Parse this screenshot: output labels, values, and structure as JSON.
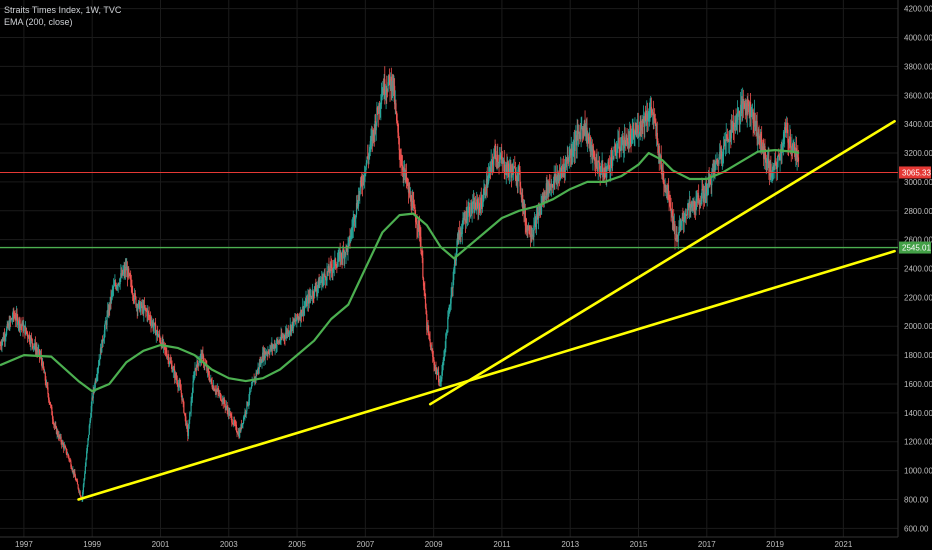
{
  "legend": {
    "title": "Straits Times Index, 1W, TVC",
    "indicator": "EMA (200, close)"
  },
  "colors": {
    "background": "#000000",
    "grid": "#1b1b1b",
    "axis_text": "#bfbfbf",
    "candle_up": "#26a69a",
    "candle_down": "#ef5350",
    "ema": "#4caf50",
    "trendline": "#ffff00",
    "support": "#4caf50",
    "price": "#e53935"
  },
  "chart_data": {
    "type": "candlestick",
    "x_ticks": [
      "1997",
      "1999",
      "2001",
      "2003",
      "2005",
      "2007",
      "2009",
      "2011",
      "2013",
      "2015",
      "2017",
      "2019",
      "2021"
    ],
    "x_range": [
      1996.3,
      2022.6
    ],
    "y_ticks": [
      600,
      800,
      1000,
      1200,
      1400,
      1600,
      1800,
      2000,
      2200,
      2400,
      2600,
      2800,
      3000,
      3200,
      3400,
      3600,
      3800,
      4000,
      4200
    ],
    "y_range": [
      540,
      4260
    ],
    "price_path": [
      [
        1996.3,
        1870
      ],
      [
        1996.7,
        2080
      ],
      [
        1997.1,
        1950
      ],
      [
        1997.5,
        1780
      ],
      [
        1997.9,
        1300
      ],
      [
        1998.3,
        1100
      ],
      [
        1998.7,
        800
      ],
      [
        1999.0,
        1500
      ],
      [
        1999.3,
        1900
      ],
      [
        1999.6,
        2250
      ],
      [
        2000.0,
        2400
      ],
      [
        2000.3,
        2150
      ],
      [
        2000.6,
        2100
      ],
      [
        2000.9,
        1950
      ],
      [
        2001.2,
        1800
      ],
      [
        2001.6,
        1550
      ],
      [
        2001.8,
        1250
      ],
      [
        2002.0,
        1700
      ],
      [
        2002.2,
        1800
      ],
      [
        2002.5,
        1600
      ],
      [
        2002.8,
        1500
      ],
      [
        2003.1,
        1350
      ],
      [
        2003.3,
        1250
      ],
      [
        2003.7,
        1600
      ],
      [
        2004.0,
        1800
      ],
      [
        2004.5,
        1900
      ],
      [
        2005.0,
        2050
      ],
      [
        2005.5,
        2250
      ],
      [
        2006.0,
        2400
      ],
      [
        2006.5,
        2550
      ],
      [
        2006.8,
        2900
      ],
      [
        2007.2,
        3300
      ],
      [
        2007.5,
        3650
      ],
      [
        2007.8,
        3700
      ],
      [
        2008.0,
        3200
      ],
      [
        2008.3,
        2900
      ],
      [
        2008.6,
        2650
      ],
      [
        2008.8,
        2000
      ],
      [
        2009.0,
        1750
      ],
      [
        2009.2,
        1600
      ],
      [
        2009.4,
        2000
      ],
      [
        2009.7,
        2600
      ],
      [
        2010.0,
        2800
      ],
      [
        2010.4,
        2850
      ],
      [
        2010.8,
        3200
      ],
      [
        2011.1,
        3100
      ],
      [
        2011.5,
        3050
      ],
      [
        2011.7,
        2700
      ],
      [
        2011.9,
        2650
      ],
      [
        2012.3,
        2950
      ],
      [
        2012.7,
        3050
      ],
      [
        2013.1,
        3250
      ],
      [
        2013.4,
        3400
      ],
      [
        2013.7,
        3150
      ],
      [
        2014.0,
        3050
      ],
      [
        2014.4,
        3250
      ],
      [
        2014.8,
        3300
      ],
      [
        2015.2,
        3450
      ],
      [
        2015.4,
        3500
      ],
      [
        2015.7,
        3050
      ],
      [
        2015.9,
        2900
      ],
      [
        2016.1,
        2600
      ],
      [
        2016.4,
        2800
      ],
      [
        2016.7,
        2850
      ],
      [
        2017.0,
        2950
      ],
      [
        2017.4,
        3200
      ],
      [
        2017.8,
        3400
      ],
      [
        2018.1,
        3550
      ],
      [
        2018.3,
        3500
      ],
      [
        2018.6,
        3250
      ],
      [
        2018.9,
        3050
      ],
      [
        2019.1,
        3150
      ],
      [
        2019.3,
        3350
      ],
      [
        2019.6,
        3200
      ],
      [
        2019.7,
        3090
      ]
    ],
    "ema_path": [
      [
        1996.3,
        1730
      ],
      [
        1997.0,
        1800
      ],
      [
        1997.8,
        1790
      ],
      [
        1998.6,
        1620
      ],
      [
        1999.0,
        1550
      ],
      [
        1999.5,
        1600
      ],
      [
        2000.0,
        1750
      ],
      [
        2000.5,
        1830
      ],
      [
        2001.0,
        1870
      ],
      [
        2001.5,
        1850
      ],
      [
        2002.0,
        1800
      ],
      [
        2002.5,
        1700
      ],
      [
        2003.0,
        1640
      ],
      [
        2003.5,
        1620
      ],
      [
        2004.0,
        1640
      ],
      [
        2004.5,
        1700
      ],
      [
        2005.0,
        1800
      ],
      [
        2005.5,
        1900
      ],
      [
        2006.0,
        2050
      ],
      [
        2006.5,
        2150
      ],
      [
        2007.0,
        2400
      ],
      [
        2007.5,
        2650
      ],
      [
        2008.0,
        2770
      ],
      [
        2008.4,
        2780
      ],
      [
        2008.8,
        2700
      ],
      [
        2009.2,
        2550
      ],
      [
        2009.6,
        2470
      ],
      [
        2010.0,
        2550
      ],
      [
        2010.5,
        2650
      ],
      [
        2011.0,
        2750
      ],
      [
        2011.5,
        2800
      ],
      [
        2012.0,
        2830
      ],
      [
        2012.5,
        2880
      ],
      [
        2013.0,
        2950
      ],
      [
        2013.5,
        3000
      ],
      [
        2014.0,
        3000
      ],
      [
        2014.5,
        3040
      ],
      [
        2015.0,
        3120
      ],
      [
        2015.3,
        3200
      ],
      [
        2015.7,
        3150
      ],
      [
        2016.0,
        3080
      ],
      [
        2016.5,
        3020
      ],
      [
        2017.0,
        3020
      ],
      [
        2017.5,
        3070
      ],
      [
        2018.0,
        3140
      ],
      [
        2018.5,
        3210
      ],
      [
        2019.0,
        3220
      ],
      [
        2019.5,
        3210
      ],
      [
        2019.7,
        3200
      ]
    ],
    "trendlines": [
      {
        "x1": 1998.6,
        "y1": 800,
        "x2": 2022.5,
        "y2": 2520
      },
      {
        "x1": 2008.9,
        "y1": 1460,
        "x2": 2022.5,
        "y2": 3420
      }
    ],
    "horizontal_lines": [
      {
        "name": "support",
        "value": 2545.01,
        "label": "2545.01"
      },
      {
        "name": "price",
        "value": 3065.33,
        "label": "3065.33"
      }
    ],
    "grid": true
  }
}
